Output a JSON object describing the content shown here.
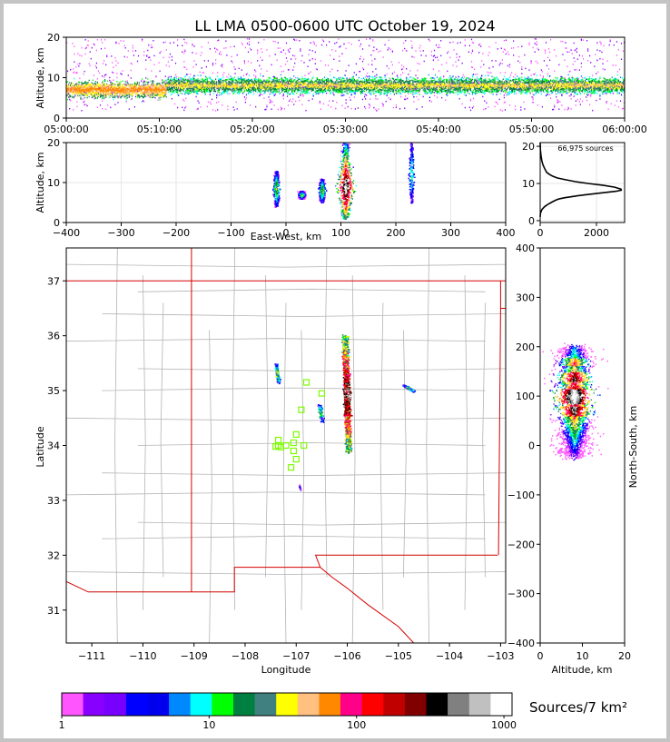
{
  "title": "LL LMA 0500-0600 UTC October 19, 2024",
  "colors": {
    "border": "#c4c4c4",
    "state_line": "#d40000",
    "county_line": "#b4b4b4",
    "station_marker": "#7cfc00",
    "histogram_line": "#000000"
  },
  "chart_data": [
    {
      "id": "time-height",
      "type": "heatmap",
      "ylabel": "Altitude, km",
      "ylim": [
        0,
        20
      ],
      "yticks": [
        "0",
        "10",
        "20"
      ],
      "xticks": [
        "05:00:00",
        "05:10:00",
        "05:20:00",
        "05:30:00",
        "05:40:00",
        "05:50:00",
        "06:00:00"
      ],
      "density_core_altitude_km": [
        6,
        11
      ],
      "early_low_band_altitude_km": [
        5,
        9
      ],
      "early_low_band_time": [
        "05:00:00",
        "05:10:00"
      ]
    },
    {
      "id": "east-west-altitude",
      "type": "heatmap",
      "xlabel": "East-West, km",
      "ylabel": "Altitude, km",
      "xlim": [
        -400,
        400
      ],
      "ylim": [
        0,
        20
      ],
      "xticks": [
        "−400",
        "−300",
        "−200",
        "−100",
        "0",
        "100",
        "200",
        "300",
        "400"
      ],
      "yticks": [
        "0",
        "10",
        "20"
      ],
      "clusters": [
        {
          "x_km": -18,
          "alt_km": [
            4,
            13
          ]
        },
        {
          "x_km": 28,
          "alt_km": [
            6,
            8
          ]
        },
        {
          "x_km": 65,
          "alt_km": [
            5,
            11
          ]
        },
        {
          "x_km": 108,
          "alt_km": [
            1,
            20
          ]
        },
        {
          "x_km": 228,
          "alt_km": [
            5,
            20
          ]
        }
      ]
    },
    {
      "id": "altitude-histogram",
      "type": "line",
      "annotation": "66,975 sources",
      "xlim": [
        0,
        3000
      ],
      "ylim": [
        -0.5,
        21
      ],
      "xticks": [
        "0",
        "2000"
      ],
      "yticks": [
        "0",
        "10",
        "20"
      ],
      "x": [
        0,
        10,
        60,
        160,
        300,
        420,
        520,
        610,
        700,
        900,
        1250,
        1650,
        2100,
        2450,
        2700,
        2880,
        2870,
        2650,
        2250,
        1700,
        1250,
        900,
        600,
        430,
        320,
        230,
        160,
        100,
        60,
        30,
        10,
        0
      ],
      "y": [
        1.0,
        2.0,
        3.0,
        3.8,
        4.5,
        5.0,
        5.4,
        5.7,
        5.9,
        6.2,
        6.6,
        7.0,
        7.4,
        7.7,
        7.9,
        8.2,
        8.5,
        9.0,
        9.5,
        10.0,
        10.5,
        11.0,
        11.5,
        12.0,
        12.5,
        13.0,
        14.0,
        15.0,
        16.0,
        17.5,
        19.0,
        21.0
      ]
    },
    {
      "id": "plan-view",
      "type": "heatmap",
      "xlabel": "Longitude",
      "ylabel": "Latitude",
      "xlim": [
        -111.5,
        -102.9
      ],
      "ylim": [
        30.4,
        37.6
      ],
      "xticks": [
        "−111",
        "−110",
        "−109",
        "−108",
        "−107",
        "−106",
        "−105",
        "−104",
        "−103"
      ],
      "yticks": [
        "31",
        "32",
        "33",
        "34",
        "35",
        "36",
        "37"
      ],
      "stations": [
        [
          -106.8,
          35.15
        ],
        [
          -106.5,
          34.95
        ],
        [
          -106.9,
          34.65
        ],
        [
          -107.35,
          34.1
        ],
        [
          -107.0,
          34.2
        ],
        [
          -106.85,
          34.0
        ],
        [
          -107.35,
          34.0
        ],
        [
          -107.2,
          34.0
        ],
        [
          -107.05,
          34.05
        ],
        [
          -107.05,
          33.9
        ],
        [
          -107.0,
          33.75
        ],
        [
          -107.1,
          33.6
        ],
        [
          -107.4,
          33.98
        ],
        [
          -107.3,
          33.97
        ]
      ]
    },
    {
      "id": "altitude-north-south",
      "type": "heatmap",
      "xlabel": "Altitude, km",
      "ylabel": "North-South, km",
      "xlim": [
        0,
        20
      ],
      "ylim": [
        -400,
        400
      ],
      "xticks": [
        "0",
        "10",
        "20"
      ],
      "yticks": [
        "−400",
        "−300",
        "−200",
        "−100",
        "0",
        "100",
        "200",
        "300",
        "400"
      ]
    }
  ],
  "colorbar": {
    "label": "Sources/7 km²",
    "ticks": [
      "1",
      "10",
      "100",
      "1000"
    ],
    "colors": [
      "#ff55ff",
      "#8800ff",
      "#7700ff",
      "#0000ff",
      "#0000ee",
      "#0088ff",
      "#00ffff",
      "#00ff00",
      "#008040",
      "#408080",
      "#ffff00",
      "#ffc080",
      "#ff8800",
      "#ff0088",
      "#ff0000",
      "#c00000",
      "#800000",
      "#000000",
      "#808080",
      "#c0c0c0",
      "#ffffff"
    ]
  }
}
